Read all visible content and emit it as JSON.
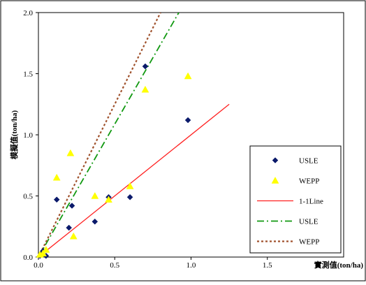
{
  "chart_data": {
    "type": "scatter",
    "xlabel": "實測值(ton/ha)",
    "ylabel": "模擬值(ton/ha)",
    "xlim": [
      0,
      2.0
    ],
    "ylim": [
      0,
      2.0
    ],
    "x_ticks": [
      "0.0",
      "0.5",
      "1.0",
      "1.5"
    ],
    "y_ticks": [
      "0.0",
      "0.5",
      "1.0",
      "1.5",
      "2.0"
    ],
    "grid": false,
    "legend_position": "bottom-right",
    "series": [
      {
        "name": "USLE",
        "kind": "points",
        "marker": "diamond",
        "color": "#0b1a6b",
        "points": [
          [
            0.01,
            0.01
          ],
          [
            0.02,
            0.03
          ],
          [
            0.03,
            0.05
          ],
          [
            0.05,
            0.01
          ],
          [
            0.12,
            0.47
          ],
          [
            0.2,
            0.24
          ],
          [
            0.22,
            0.42
          ],
          [
            0.37,
            0.29
          ],
          [
            0.46,
            0.49
          ],
          [
            0.6,
            0.49
          ],
          [
            0.7,
            1.56
          ],
          [
            0.98,
            1.12
          ]
        ]
      },
      {
        "name": "WEPP",
        "kind": "points",
        "marker": "triangle",
        "color": "#ffff00",
        "points": [
          [
            0.01,
            0.02
          ],
          [
            0.03,
            0.03
          ],
          [
            0.05,
            0.06
          ],
          [
            0.12,
            0.65
          ],
          [
            0.21,
            0.85
          ],
          [
            0.23,
            0.17
          ],
          [
            0.37,
            0.5
          ],
          [
            0.46,
            0.47
          ],
          [
            0.6,
            0.58
          ],
          [
            0.7,
            1.37
          ],
          [
            0.98,
            1.48
          ]
        ]
      },
      {
        "name": "1-1Line",
        "kind": "line",
        "style": "solid",
        "color": "#ff2020",
        "points": [
          [
            0,
            0
          ],
          [
            1.25,
            1.25
          ]
        ]
      },
      {
        "name": "USLE",
        "kind": "line",
        "style": "dashdot",
        "color": "#119911",
        "points": [
          [
            0,
            0
          ],
          [
            0.92,
            2.0
          ]
        ]
      },
      {
        "name": "WEPP",
        "kind": "line",
        "style": "dotted",
        "color": "#a0522d",
        "points": [
          [
            0,
            0
          ],
          [
            0.8,
            2.0
          ]
        ]
      }
    ]
  }
}
